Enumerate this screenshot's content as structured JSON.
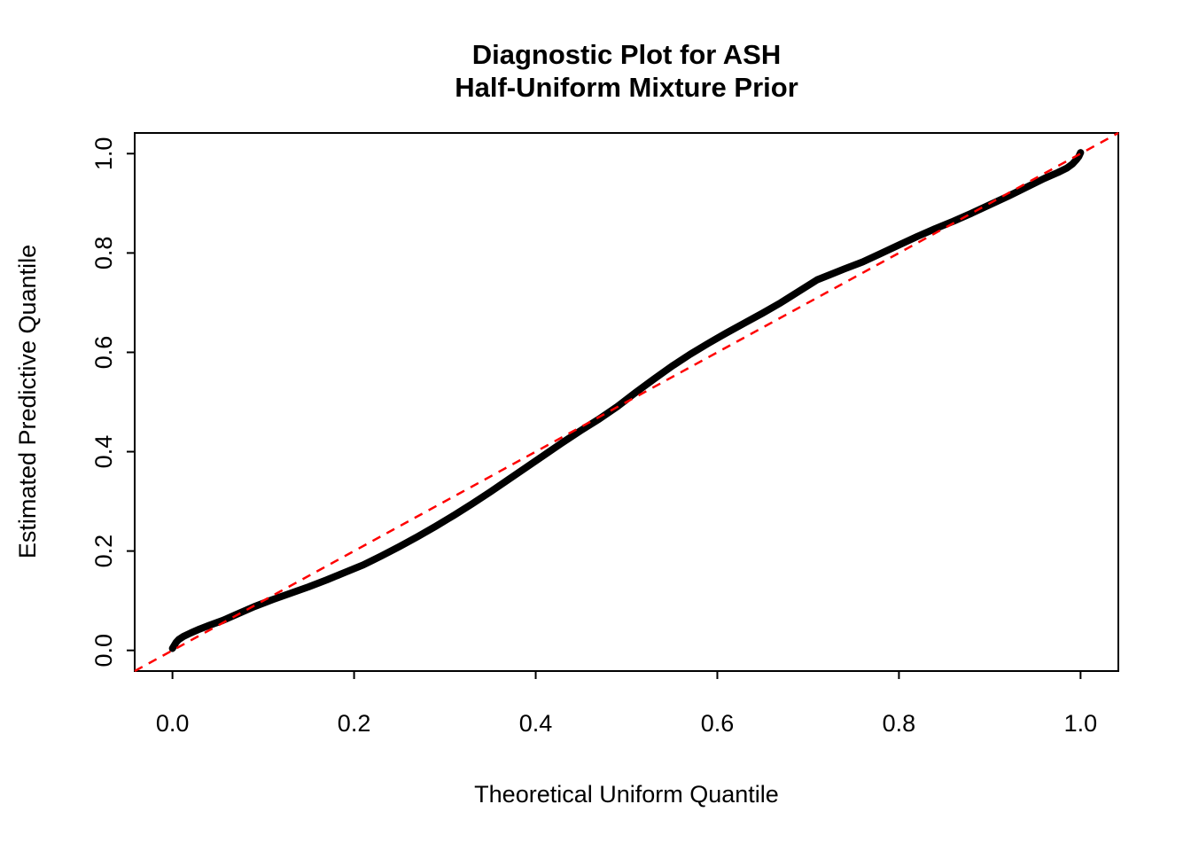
{
  "chart_data": {
    "type": "scatter",
    "title_lines": [
      "Diagnostic Plot for ASH",
      "Half-Uniform Mixture Prior"
    ],
    "xlabel": "Theoretical Uniform Quantile",
    "ylabel": "Estimated Predictive Quantile",
    "xlim": [
      -0.0416,
      1.0416
    ],
    "ylim": [
      -0.0416,
      1.0416
    ],
    "x_ticks": [
      0.0,
      0.2,
      0.4,
      0.6,
      0.8,
      1.0
    ],
    "x_tick_labels": [
      "0.0",
      "0.2",
      "0.4",
      "0.6",
      "0.8",
      "1.0"
    ],
    "y_ticks": [
      0.0,
      0.2,
      0.4,
      0.6,
      0.8,
      1.0
    ],
    "y_tick_labels": [
      "0.0",
      "0.2",
      "0.4",
      "0.6",
      "0.8",
      "1.0"
    ],
    "grid": false,
    "legend": false,
    "series": [
      {
        "name": "estimated-predictive-quantiles",
        "color": "#000000",
        "points": [
          [
            0.0,
            0.004
          ],
          [
            0.002,
            0.01
          ],
          [
            0.004,
            0.016
          ],
          [
            0.007,
            0.022
          ],
          [
            0.012,
            0.028
          ],
          [
            0.02,
            0.035
          ],
          [
            0.03,
            0.043
          ],
          [
            0.04,
            0.05
          ],
          [
            0.055,
            0.06
          ],
          [
            0.07,
            0.072
          ],
          [
            0.09,
            0.088
          ],
          [
            0.11,
            0.102
          ],
          [
            0.13,
            0.115
          ],
          [
            0.15,
            0.128
          ],
          [
            0.17,
            0.142
          ],
          [
            0.19,
            0.157
          ],
          [
            0.21,
            0.172
          ],
          [
            0.23,
            0.19
          ],
          [
            0.25,
            0.209
          ],
          [
            0.27,
            0.229
          ],
          [
            0.29,
            0.25
          ],
          [
            0.31,
            0.272
          ],
          [
            0.33,
            0.295
          ],
          [
            0.35,
            0.319
          ],
          [
            0.37,
            0.344
          ],
          [
            0.39,
            0.369
          ],
          [
            0.41,
            0.394
          ],
          [
            0.43,
            0.419
          ],
          [
            0.45,
            0.443
          ],
          [
            0.47,
            0.466
          ],
          [
            0.49,
            0.491
          ],
          [
            0.51,
            0.519
          ],
          [
            0.53,
            0.546
          ],
          [
            0.55,
            0.572
          ],
          [
            0.57,
            0.596
          ],
          [
            0.59,
            0.618
          ],
          [
            0.61,
            0.639
          ],
          [
            0.63,
            0.659
          ],
          [
            0.65,
            0.679
          ],
          [
            0.67,
            0.7
          ],
          [
            0.69,
            0.723
          ],
          [
            0.71,
            0.746
          ],
          [
            0.725,
            0.757
          ],
          [
            0.74,
            0.768
          ],
          [
            0.76,
            0.782
          ],
          [
            0.78,
            0.799
          ],
          [
            0.8,
            0.816
          ],
          [
            0.82,
            0.833
          ],
          [
            0.84,
            0.849
          ],
          [
            0.86,
            0.864
          ],
          [
            0.88,
            0.88
          ],
          [
            0.9,
            0.897
          ],
          [
            0.92,
            0.914
          ],
          [
            0.94,
            0.932
          ],
          [
            0.96,
            0.95
          ],
          [
            0.975,
            0.962
          ],
          [
            0.985,
            0.971
          ],
          [
            0.991,
            0.979
          ],
          [
            0.995,
            0.987
          ],
          [
            0.998,
            0.994
          ],
          [
            1.0,
            1.002
          ]
        ]
      }
    ],
    "reference_line": {
      "type": "identity",
      "equation": "y = x",
      "color": "#FF0000",
      "style": "dashed"
    }
  }
}
